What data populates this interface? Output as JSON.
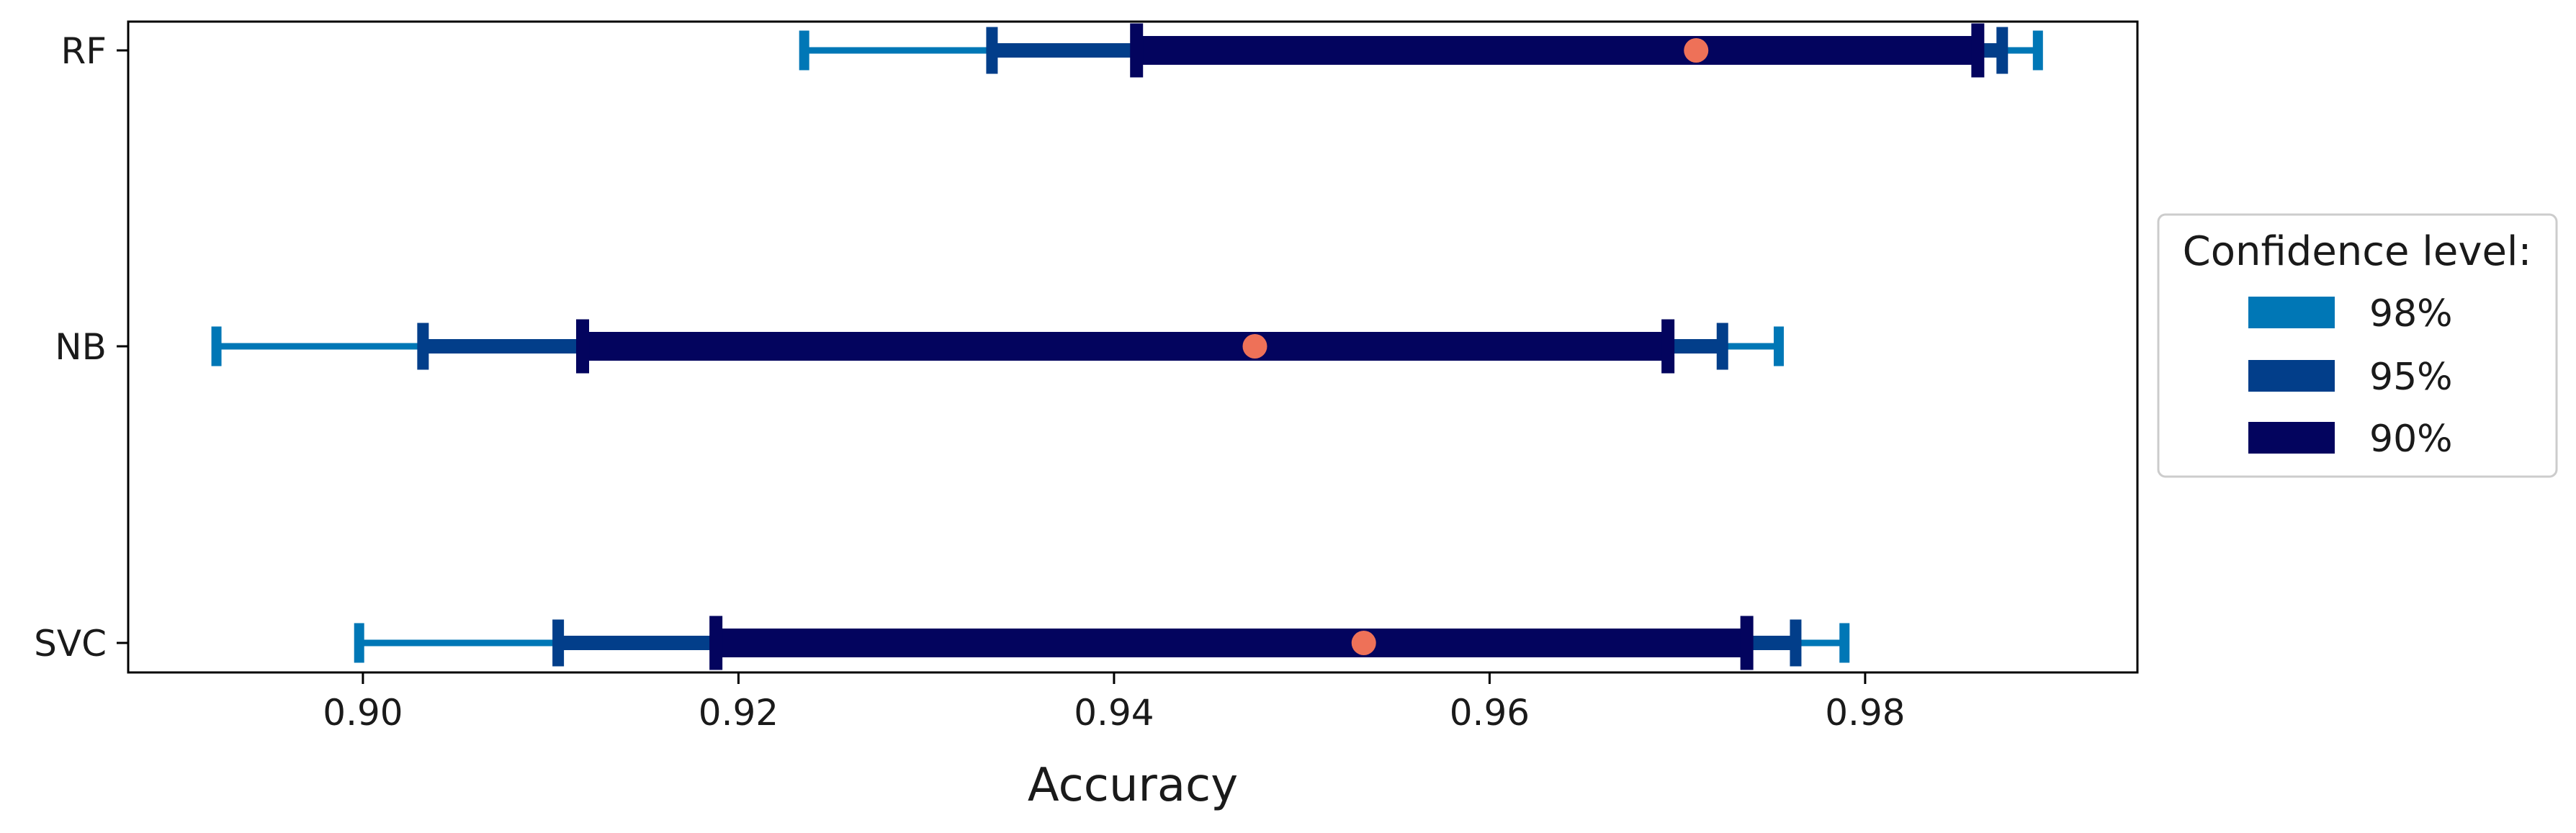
{
  "chart_data": {
    "type": "interval",
    "title": "",
    "xlabel": "Accuracy",
    "ylabel": "",
    "xlim": [
      0.8875,
      0.9945
    ],
    "x_ticks": [
      0.9,
      0.92,
      0.94,
      0.96,
      0.98
    ],
    "x_tick_labels": [
      "0.90",
      "0.92",
      "0.94",
      "0.96",
      "0.98"
    ],
    "categories": [
      "RF",
      "NB",
      "SVC"
    ],
    "point_estimates": [
      0.971,
      0.9475,
      0.9533
    ],
    "point_color": "#ee7158",
    "series": [
      {
        "name": "98%",
        "color": "#0077b6",
        "lower": [
          0.9235,
          0.8922,
          0.8998
        ],
        "upper": [
          0.9892,
          0.9754,
          0.9789
        ]
      },
      {
        "name": "95%",
        "color": "#023e8a",
        "lower": [
          0.9335,
          0.9032,
          0.9104
        ],
        "upper": [
          0.9873,
          0.9724,
          0.9763
        ]
      },
      {
        "name": "90%",
        "color": "#03045e",
        "lower": [
          0.9412,
          0.9117,
          0.9188
        ],
        "upper": [
          0.986,
          0.9695,
          0.9737
        ]
      }
    ],
    "grid": false,
    "legend": {
      "title": "Confidence level:",
      "placement": "right",
      "entries": [
        "98%",
        "95%",
        "90%"
      ]
    }
  }
}
